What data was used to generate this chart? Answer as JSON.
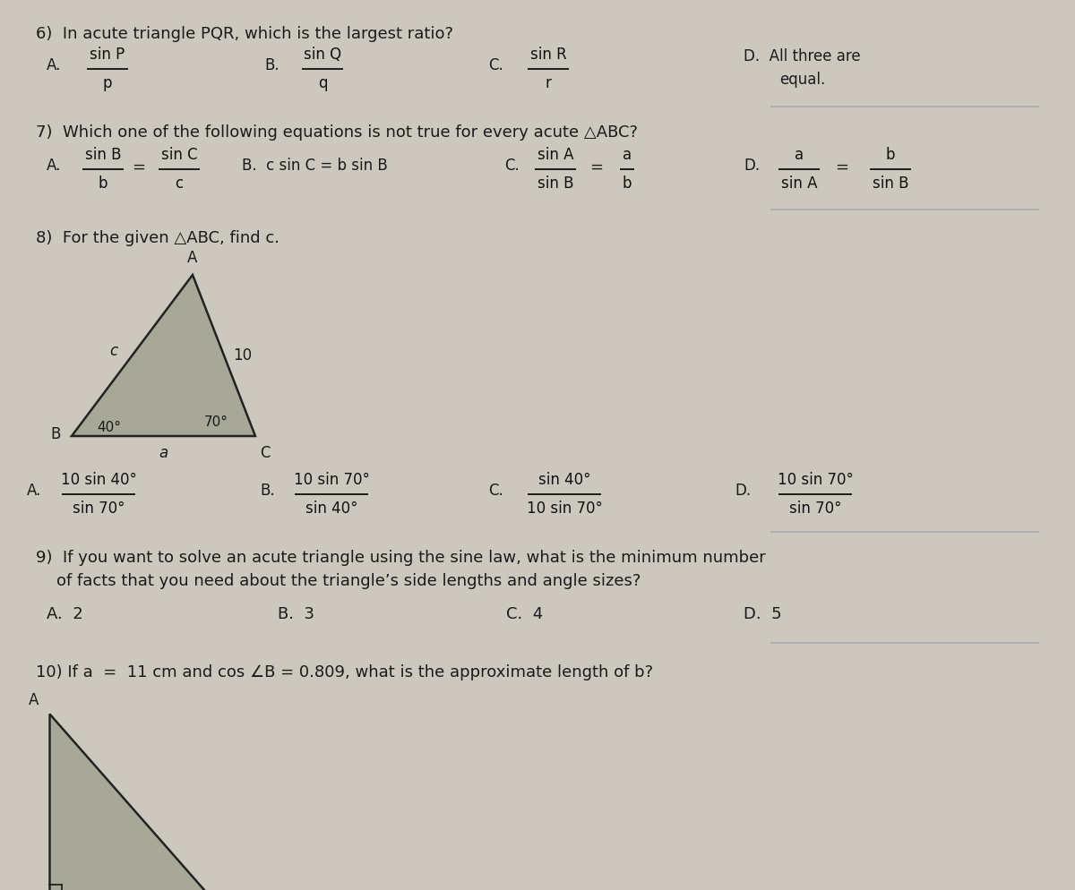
{
  "page_bg": "#cdc8be",
  "text_color": "#1a1a1a",
  "line_color": "#666666",
  "tri_fill": "#a8a898",
  "tri_edge": "#222222",
  "q6_header": "6)  In acute triangle PQR, which is the largest ratio?",
  "q6_A_num": "sin P",
  "q6_A_den": "p",
  "q6_B_num": "sin Q",
  "q6_B_den": "q",
  "q6_C_num": "sin R",
  "q6_C_den": "r",
  "q6_D1": "D.  All three are",
  "q6_D2": "equal.",
  "q7_header": "7)  Which one of the following equations is not true for every acute △ABC?",
  "q7_B": "B.  c sin C = b sin B",
  "q8_header": "8)  For the given △ABC, find c.",
  "q8_A_num": "10 sin 40°",
  "q8_A_den": "sin 70°",
  "q8_B_num": "10 sin 70°",
  "q8_B_den": "sin 40°",
  "q8_C_num": "sin 40°",
  "q8_C_den": "10 sin 70°",
  "q8_D_num": "10 sin 70°",
  "q8_D_den": "sin 70°",
  "q9_line1": "9)  If you want to solve an acute triangle using the sine law, what is the minimum number",
  "q9_line2": "    of facts that you need about the triangle’s side lengths and angle sizes?",
  "q10_header": "10) If a  =  11 cm and cos ∠B = 0.809, what is the approximate length of b?"
}
